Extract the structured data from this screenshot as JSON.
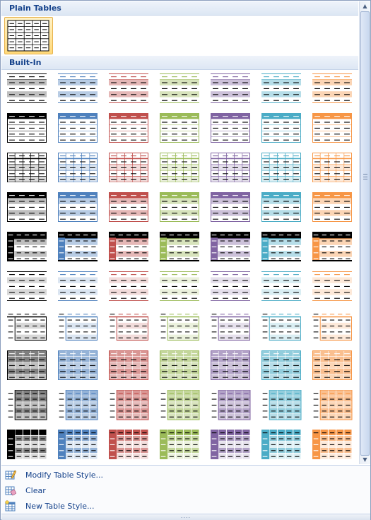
{
  "sections": {
    "plain_tables": "Plain Tables",
    "built_in": "Built-In"
  },
  "colors": {
    "accents": [
      "#000000",
      "#4f81bd",
      "#c0504d",
      "#9bbb59",
      "#8064a2",
      "#4bacc6",
      "#f79646"
    ],
    "lights": [
      "#d8d8d8",
      "#dbe5f1",
      "#f2dcdb",
      "#ebf1dd",
      "#e5e0ec",
      "#daeef3",
      "#fde9d9"
    ],
    "mids": [
      "#bfbfbf",
      "#b8cce4",
      "#e5b8b7",
      "#d7e3bc",
      "#ccc1d9",
      "#b6dde8",
      "#fbd5b5"
    ],
    "darks": [
      "#7f7f7f",
      "#95b3d7",
      "#d99694",
      "#c3d69b",
      "#b2a2c7",
      "#92cddc",
      "#fabf8f"
    ]
  },
  "grid": {
    "rows": 10,
    "cols": 7,
    "row_styles": [
      "light-shading",
      "light-header",
      "light-grid",
      "medium-shading-1",
      "medium-shading-2",
      "medium-list-1",
      "medium-list-2",
      "medium-grid-1",
      "medium-grid-3",
      "dark-list"
    ]
  },
  "menu": {
    "items": [
      {
        "label": "Modify Table Style...",
        "icon": "modify-table-style-icon"
      },
      {
        "label": "Clear",
        "icon": "clear-table-icon"
      },
      {
        "label": "New Table Style...",
        "icon": "new-table-style-icon"
      }
    ]
  },
  "grip": "....",
  "scrollbar": {
    "up": "▲",
    "down": "▼"
  }
}
